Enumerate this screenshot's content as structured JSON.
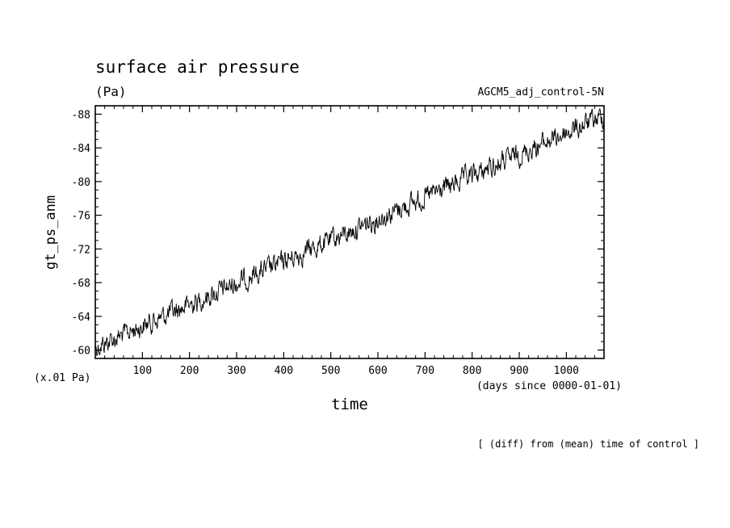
{
  "chart_data": {
    "type": "line",
    "title": "surface air pressure",
    "units_label": "(Pa)",
    "run_label": "AGCM5_adj_control-5N",
    "ylabel": "gt_ps_anm",
    "y_scale_label": "(x.01 Pa)",
    "xlabel": "time",
    "x_units_label": "(days since 0000-01-01)",
    "footnote": "[ (diff) from (mean) time of control ]",
    "xlim": [
      0,
      1080
    ],
    "ylim": [
      -59,
      -89
    ],
    "x_ticks": [
      100,
      200,
      300,
      400,
      500,
      600,
      700,
      800,
      900,
      1000
    ],
    "x_tick_labels": [
      "100",
      "200",
      "300",
      "400",
      "500",
      "600",
      "700",
      "800",
      "900",
      "1000"
    ],
    "y_ticks": [
      -60,
      -64,
      -68,
      -72,
      -76,
      -80,
      -84,
      -88
    ],
    "y_tick_labels": [
      "-60",
      "-64",
      "-68",
      "-72",
      "-76",
      "-80",
      "-84",
      "-88"
    ],
    "series": [
      {
        "name": "gt_ps_anm",
        "trend_start": [
          0,
          -60.3
        ],
        "trend_end": [
          1080,
          -87.8
        ],
        "noise_amplitude": 1.0,
        "sample_interval_days": 1,
        "note": "daily noisy series rising roughly linearly from about -60 to about -88"
      }
    ],
    "color": "#000000"
  }
}
